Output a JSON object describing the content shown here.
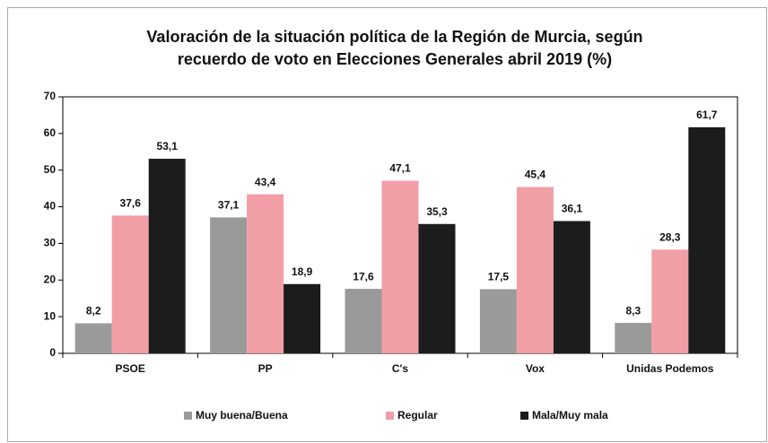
{
  "chart_data": {
    "type": "bar",
    "title": [
      "Valoración de la situación política de la Región de Murcia, según",
      "recuerdo de voto en Elecciones Generales abril 2019 (%)"
    ],
    "categories": [
      "PSOE",
      "PP",
      "C's",
      "Vox",
      "Unidas Podemos"
    ],
    "series": [
      {
        "name": "Muy buena/Buena",
        "color": "#9a9a9a",
        "values": [
          8.2,
          37.1,
          17.6,
          17.5,
          8.3
        ],
        "value_labels": [
          "8,2",
          "37,1",
          "17,6",
          "17,5",
          "8,3"
        ]
      },
      {
        "name": "Regular",
        "color": "#f29ea7",
        "values": [
          37.6,
          43.4,
          47.1,
          45.4,
          28.3
        ],
        "value_labels": [
          "37,6",
          "43,4",
          "47,1",
          "45,4",
          "28,3"
        ]
      },
      {
        "name": "Mala/Muy mala",
        "color": "#1c1c1c",
        "values": [
          53.1,
          18.9,
          35.3,
          36.1,
          61.7
        ],
        "value_labels": [
          "53,1",
          "18,9",
          "35,3",
          "36,1",
          "61,7"
        ]
      }
    ],
    "ylim": [
      0,
      70
    ],
    "yticks": [
      0,
      10,
      20,
      30,
      40,
      50,
      60,
      70
    ],
    "grid": false,
    "legend": "bottom"
  }
}
